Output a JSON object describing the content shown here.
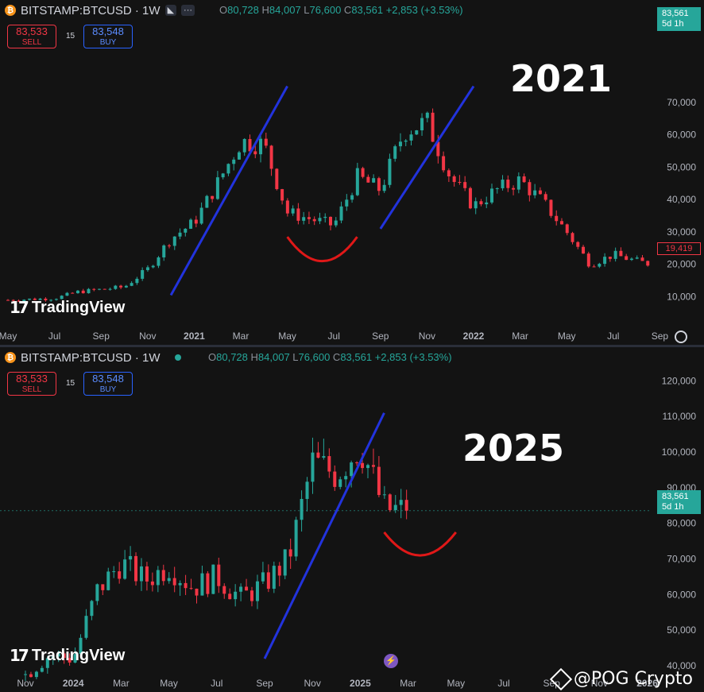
{
  "top": {
    "symbol": "BITSTAMP:BTCUSD · 1W",
    "ohlc": {
      "o_label": "O",
      "o": "80,728",
      "h_label": "H",
      "h": "84,007",
      "l_label": "L",
      "l": "76,600",
      "c_label": "C",
      "c": "83,561",
      "chg": "+2,853 (+3.53%)"
    },
    "sell_value": "83,533",
    "sell_label": "SELL",
    "buy_value": "83,548",
    "buy_label": "BUY",
    "spread": "15",
    "price_tag": "83,561",
    "price_tag_sub": "5d 1h",
    "last_tag": "19,419",
    "year_label": "2021",
    "brand": "TradingView"
  },
  "bottom": {
    "symbol": "BITSTAMP:BTCUSD · 1W",
    "ohlc": {
      "o_label": "O",
      "o": "80,728",
      "h_label": "H",
      "h": "84,007",
      "l_label": "L",
      "l": "76,600",
      "c_label": "C",
      "c": "83,561",
      "chg": "+2,853 (+3.53%)"
    },
    "sell_value": "83,533",
    "sell_label": "SELL",
    "buy_value": "83,548",
    "buy_label": "BUY",
    "spread": "15",
    "price_tag": "83,561",
    "price_tag_sub": "5d 1h",
    "year_label": "2025",
    "brand": "TradingView"
  },
  "watermark": "@POG Crypto",
  "colors": {
    "up": "#26a69a",
    "down": "#f23645",
    "trend": "#2233dd",
    "arc": "#e01818",
    "bg": "#131313",
    "axis_text": "#b2b5be"
  },
  "chart_data": [
    {
      "type": "candlestick",
      "title": "BITSTAMP:BTCUSD · 1W",
      "x_tick_labels": [
        "May",
        "Jul",
        "Sep",
        "Nov",
        "2021",
        "Mar",
        "May",
        "Jul",
        "Sep",
        "Nov",
        "2022",
        "Mar",
        "May",
        "Jul",
        "Sep"
      ],
      "y_tick_labels": [
        "10,000",
        "20,000",
        "30,000",
        "40,000",
        "50,000",
        "60,000",
        "70,000"
      ],
      "ylim": [
        3500,
        82000
      ],
      "annotations": [
        "blue trendline rising Dec 2020 → Apr 2021",
        "red U-arc under Jun–Jul 2021 lows",
        "blue trendline rising Sep → Nov 2021",
        "text 2021"
      ],
      "anchor_closes": [
        {
          "x": "2020-05",
          "close": 9000
        },
        {
          "x": "2020-07",
          "close": 9500
        },
        {
          "x": "2020-08",
          "close": 11500
        },
        {
          "x": "2020-10",
          "close": 13000
        },
        {
          "x": "2020-11",
          "close": 18500
        },
        {
          "x": "2020-12",
          "close": 28000
        },
        {
          "x": "2021-01",
          "close": 33000
        },
        {
          "x": "2021-02",
          "close": 45000
        },
        {
          "x": "2021-03",
          "close": 58000
        },
        {
          "x": "2021-04",
          "close": 57000
        },
        {
          "x": "2021-05",
          "close": 36000
        },
        {
          "x": "2021-06",
          "close": 34000
        },
        {
          "x": "2021-07",
          "close": 32000
        },
        {
          "x": "2021-08",
          "close": 47000
        },
        {
          "x": "2021-09",
          "close": 43000
        },
        {
          "x": "2021-10",
          "close": 61000
        },
        {
          "x": "2021-11",
          "close": 64000
        },
        {
          "x": "2021-12",
          "close": 47000
        },
        {
          "x": "2022-01",
          "close": 38000
        },
        {
          "x": "2022-02",
          "close": 43000
        },
        {
          "x": "2022-03",
          "close": 46000
        },
        {
          "x": "2022-04",
          "close": 39000
        },
        {
          "x": "2022-05",
          "close": 30000
        },
        {
          "x": "2022-06",
          "close": 20000
        },
        {
          "x": "2022-07",
          "close": 23000
        },
        {
          "x": "2022-08",
          "close": 21000
        },
        {
          "x": "2022-09",
          "close": 19419
        }
      ]
    },
    {
      "type": "candlestick",
      "title": "BITSTAMP:BTCUSD · 1W",
      "x_tick_labels": [
        "Nov",
        "2024",
        "Mar",
        "May",
        "Jul",
        "Sep",
        "Nov",
        "2025",
        "Mar",
        "May",
        "Jul",
        "Sep",
        "Nov",
        "2026"
      ],
      "y_tick_labels": [
        "40,000",
        "50,000",
        "60,000",
        "70,000",
        "80,000",
        "90,000",
        "100,000",
        "110,000",
        "120,000"
      ],
      "ylim": [
        38000,
        125000
      ],
      "annotations": [
        "blue trendline rising Sep 2024 → Feb 2025",
        "red U-arc under Mar 2025 low",
        "text 2025"
      ],
      "anchor_closes": [
        {
          "x": "2023-11",
          "close": 37500
        },
        {
          "x": "2023-12",
          "close": 43000
        },
        {
          "x": "2024-01",
          "close": 42000
        },
        {
          "x": "2024-02",
          "close": 61000
        },
        {
          "x": "2024-03",
          "close": 69000
        },
        {
          "x": "2024-04",
          "close": 64000
        },
        {
          "x": "2024-05",
          "close": 68000
        },
        {
          "x": "2024-06",
          "close": 62000
        },
        {
          "x": "2024-07",
          "close": 65000
        },
        {
          "x": "2024-08",
          "close": 59000
        },
        {
          "x": "2024-09",
          "close": 63000
        },
        {
          "x": "2024-10",
          "close": 70000
        },
        {
          "x": "2024-11",
          "close": 97000
        },
        {
          "x": "2024-12",
          "close": 94000
        },
        {
          "x": "2025-01",
          "close": 102000
        },
        {
          "x": "2025-02",
          "close": 84000
        },
        {
          "x": "2025-03",
          "close": 83561
        }
      ]
    }
  ]
}
